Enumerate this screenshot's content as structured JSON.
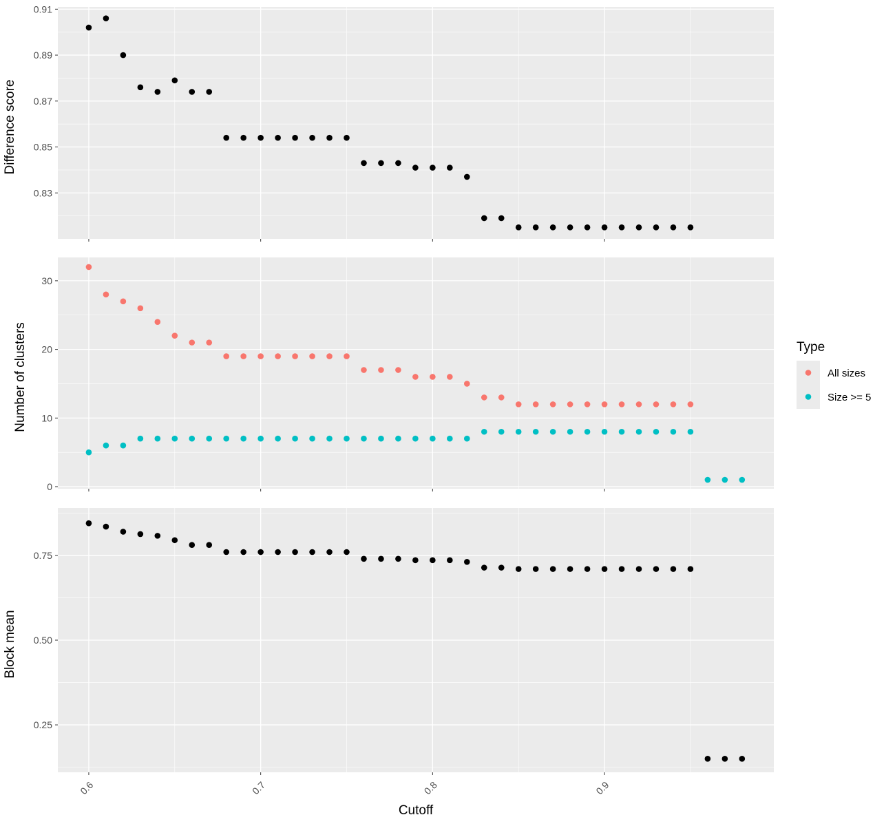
{
  "chart_data": [
    {
      "type": "scatter",
      "ylabel": "Difference score",
      "ylim": [
        0.81,
        0.911
      ],
      "yticks": [
        0.83,
        0.85,
        0.87,
        0.89,
        0.91
      ],
      "ytick_labels": [
        "0.83",
        "0.85",
        "0.87",
        "0.89",
        "0.91"
      ],
      "series": [
        {
          "color": "#000000",
          "x": [
            0.6,
            0.61,
            0.62,
            0.63,
            0.64,
            0.65,
            0.66,
            0.67,
            0.68,
            0.69,
            0.7,
            0.71,
            0.72,
            0.73,
            0.74,
            0.75,
            0.76,
            0.77,
            0.78,
            0.79,
            0.8,
            0.81,
            0.82,
            0.83,
            0.84,
            0.85,
            0.86,
            0.87,
            0.88,
            0.89,
            0.9,
            0.91,
            0.92,
            0.93,
            0.94,
            0.95
          ],
          "y": [
            0.902,
            0.906,
            0.89,
            0.876,
            0.874,
            0.879,
            0.874,
            0.874,
            0.854,
            0.854,
            0.854,
            0.854,
            0.854,
            0.854,
            0.854,
            0.854,
            0.843,
            0.843,
            0.843,
            0.841,
            0.841,
            0.841,
            0.837,
            0.819,
            0.819,
            0.815,
            0.815,
            0.815,
            0.815,
            0.815,
            0.815,
            0.815,
            0.815,
            0.815,
            0.815,
            0.815
          ]
        }
      ]
    },
    {
      "type": "scatter",
      "ylabel": "Number of clusters",
      "ylim": [
        -0.3,
        33.4
      ],
      "yticks": [
        0,
        10,
        20,
        30
      ],
      "ytick_labels": [
        "0",
        "10",
        "20",
        "30"
      ],
      "legend": {
        "title": "Type",
        "position": "right"
      },
      "series": [
        {
          "name": "All sizes",
          "color": "#F8766D",
          "x": [
            0.6,
            0.61,
            0.62,
            0.63,
            0.64,
            0.65,
            0.66,
            0.67,
            0.68,
            0.69,
            0.7,
            0.71,
            0.72,
            0.73,
            0.74,
            0.75,
            0.76,
            0.77,
            0.78,
            0.79,
            0.8,
            0.81,
            0.82,
            0.83,
            0.84,
            0.85,
            0.86,
            0.87,
            0.88,
            0.89,
            0.9,
            0.91,
            0.92,
            0.93,
            0.94,
            0.95
          ],
          "y": [
            32,
            28,
            27,
            26,
            24,
            22,
            21,
            21,
            19,
            19,
            19,
            19,
            19,
            19,
            19,
            19,
            17,
            17,
            17,
            16,
            16,
            16,
            15,
            13,
            13,
            12,
            12,
            12,
            12,
            12,
            12,
            12,
            12,
            12,
            12,
            12
          ]
        },
        {
          "name": "Size >= 5",
          "color": "#00BFC4",
          "x": [
            0.6,
            0.61,
            0.62,
            0.63,
            0.64,
            0.65,
            0.66,
            0.67,
            0.68,
            0.69,
            0.7,
            0.71,
            0.72,
            0.73,
            0.74,
            0.75,
            0.76,
            0.77,
            0.78,
            0.79,
            0.8,
            0.81,
            0.82,
            0.83,
            0.84,
            0.85,
            0.86,
            0.87,
            0.88,
            0.89,
            0.9,
            0.91,
            0.92,
            0.93,
            0.94,
            0.95,
            0.96,
            0.97,
            0.98
          ],
          "y": [
            5,
            6,
            6,
            7,
            7,
            7,
            7,
            7,
            7,
            7,
            7,
            7,
            7,
            7,
            7,
            7,
            7,
            7,
            7,
            7,
            7,
            7,
            7,
            8,
            8,
            8,
            8,
            8,
            8,
            8,
            8,
            8,
            8,
            8,
            8,
            8,
            1,
            1,
            1
          ]
        }
      ]
    },
    {
      "type": "scatter",
      "ylabel": "Block mean",
      "xlabel": "Cutoff",
      "ylim": [
        0.11,
        0.89
      ],
      "yticks": [
        0.25,
        0.5,
        0.75
      ],
      "ytick_labels": [
        "0.25",
        "0.50",
        "0.75"
      ],
      "xticks": [
        0.6,
        0.7,
        0.8,
        0.9
      ],
      "xtick_labels": [
        "0.6",
        "0.7",
        "0.8",
        "0.9"
      ],
      "series": [
        {
          "color": "#000000",
          "x": [
            0.6,
            0.61,
            0.62,
            0.63,
            0.64,
            0.65,
            0.66,
            0.67,
            0.68,
            0.69,
            0.7,
            0.71,
            0.72,
            0.73,
            0.74,
            0.75,
            0.76,
            0.77,
            0.78,
            0.79,
            0.8,
            0.81,
            0.82,
            0.83,
            0.84,
            0.85,
            0.86,
            0.87,
            0.88,
            0.89,
            0.9,
            0.91,
            0.92,
            0.93,
            0.94,
            0.95,
            0.96,
            0.97,
            0.98
          ],
          "y": [
            0.845,
            0.835,
            0.82,
            0.813,
            0.808,
            0.795,
            0.781,
            0.781,
            0.76,
            0.76,
            0.76,
            0.76,
            0.76,
            0.76,
            0.76,
            0.76,
            0.74,
            0.74,
            0.74,
            0.736,
            0.736,
            0.736,
            0.731,
            0.714,
            0.714,
            0.71,
            0.71,
            0.71,
            0.71,
            0.71,
            0.71,
            0.71,
            0.71,
            0.71,
            0.71,
            0.71,
            0.15,
            0.15,
            0.15
          ]
        }
      ]
    }
  ],
  "shared_x": {
    "xlim": [
      0.582,
      0.9985
    ],
    "xticks": [
      0.6,
      0.7,
      0.8,
      0.9
    ]
  },
  "style": {
    "panel_bg": "#EBEBEB",
    "grid": "#FFFFFF",
    "tick_color": "#333333"
  }
}
